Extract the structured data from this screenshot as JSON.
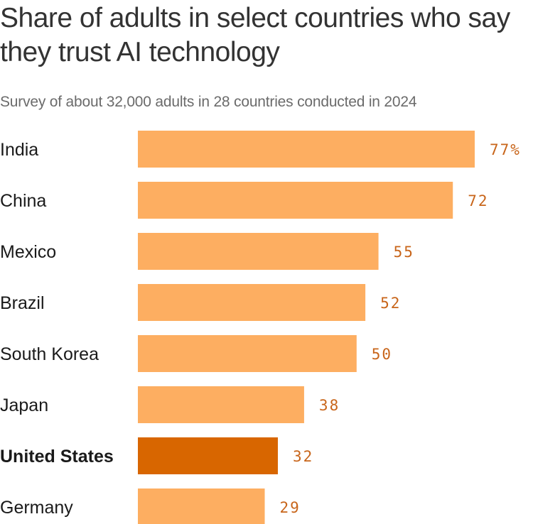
{
  "chart_data": {
    "type": "bar",
    "orientation": "horizontal",
    "title": "Share of adults in select countries who say they trust AI technology",
    "subtitle": "Survey of about 32,000 adults in 28 countries conducted in 2024",
    "categories": [
      "India",
      "China",
      "Mexico",
      "Brazil",
      "South Korea",
      "Japan",
      "United States",
      "Germany"
    ],
    "values": [
      77,
      72,
      55,
      52,
      50,
      38,
      32,
      29
    ],
    "value_labels": [
      "77%",
      "72",
      "55",
      "52",
      "50",
      "38",
      "32",
      "29"
    ],
    "highlight": "United States",
    "unit": "%",
    "xlim": [
      0,
      77
    ],
    "grid": false,
    "colors": {
      "bar": "#fdae61",
      "highlight": "#d86600",
      "label": "#c8651a",
      "text": "#1a1a1a"
    }
  }
}
